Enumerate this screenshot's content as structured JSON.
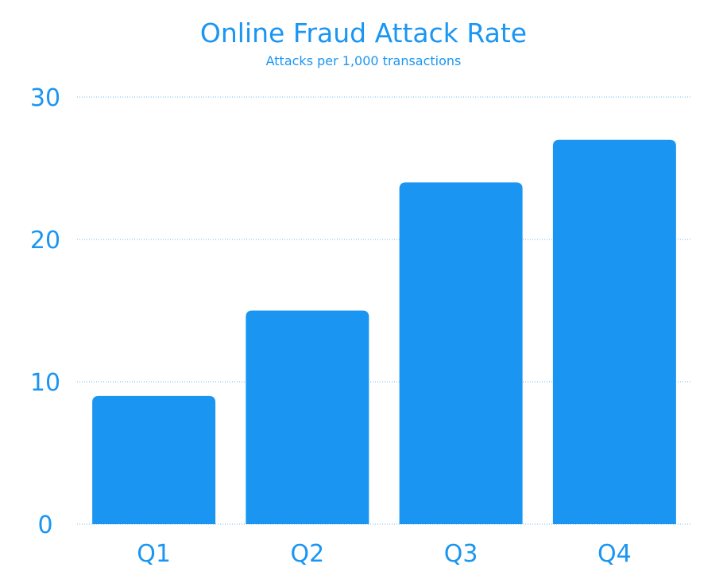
{
  "chart_data": {
    "type": "bar",
    "title": "Online Fraud Attack Rate",
    "subtitle": "Attacks per 1,000 transactions",
    "categories": [
      "Q1",
      "Q2",
      "Q3",
      "Q4"
    ],
    "values": [
      9,
      15,
      24,
      27
    ],
    "ylim": [
      0,
      30
    ],
    "yticks": [
      "0",
      "10",
      "20",
      "30"
    ],
    "xlabel": "",
    "ylabel": "",
    "grid": true,
    "bar_color": "#1a96f2",
    "text_color": "#1a96f2",
    "grid_color": "#2a9ff0"
  }
}
